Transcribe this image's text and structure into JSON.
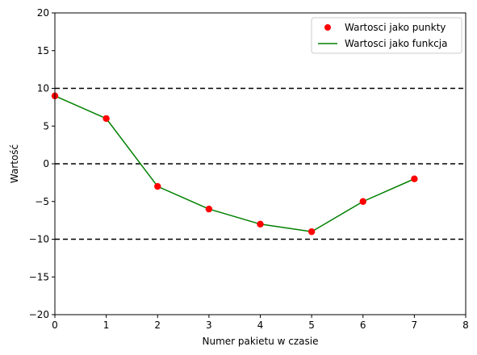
{
  "chart_data": {
    "type": "line",
    "title": "",
    "xlabel": "Numer pakietu w czasie",
    "ylabel": "Wartość",
    "xlim": [
      0,
      8
    ],
    "ylim": [
      -20,
      20
    ],
    "x_ticks": [
      0,
      1,
      2,
      3,
      4,
      5,
      6,
      7,
      8
    ],
    "y_ticks": [
      -20,
      -15,
      -10,
      -5,
      0,
      5,
      10,
      15,
      20
    ],
    "x_tick_labels": [
      "0",
      "1",
      "2",
      "3",
      "4",
      "5",
      "6",
      "7",
      "8"
    ],
    "y_tick_labels": [
      "−20",
      "−15",
      "−10",
      "−5",
      "0",
      "5",
      "10",
      "15",
      "20"
    ],
    "x": [
      0,
      1,
      2,
      3,
      4,
      5,
      6,
      7
    ],
    "series": [
      {
        "name": "Wartosci jako punkty",
        "kind": "scatter",
        "color": "#ff0000",
        "values": [
          9,
          6,
          -3,
          -6,
          -8,
          -9,
          -5,
          -2
        ]
      },
      {
        "name": "Wartosci jako funkcja",
        "kind": "line",
        "color": "#008000",
        "values": [
          9,
          6,
          -3,
          -6,
          -8,
          -9,
          -5,
          -2
        ]
      }
    ],
    "reference_lines": [
      {
        "y": 10,
        "style": "dashed",
        "color": "#000000"
      },
      {
        "y": 0,
        "style": "dashed",
        "color": "#000000"
      },
      {
        "y": -10,
        "style": "dashed",
        "color": "#000000"
      }
    ],
    "grid": false,
    "legend": "top-right"
  }
}
